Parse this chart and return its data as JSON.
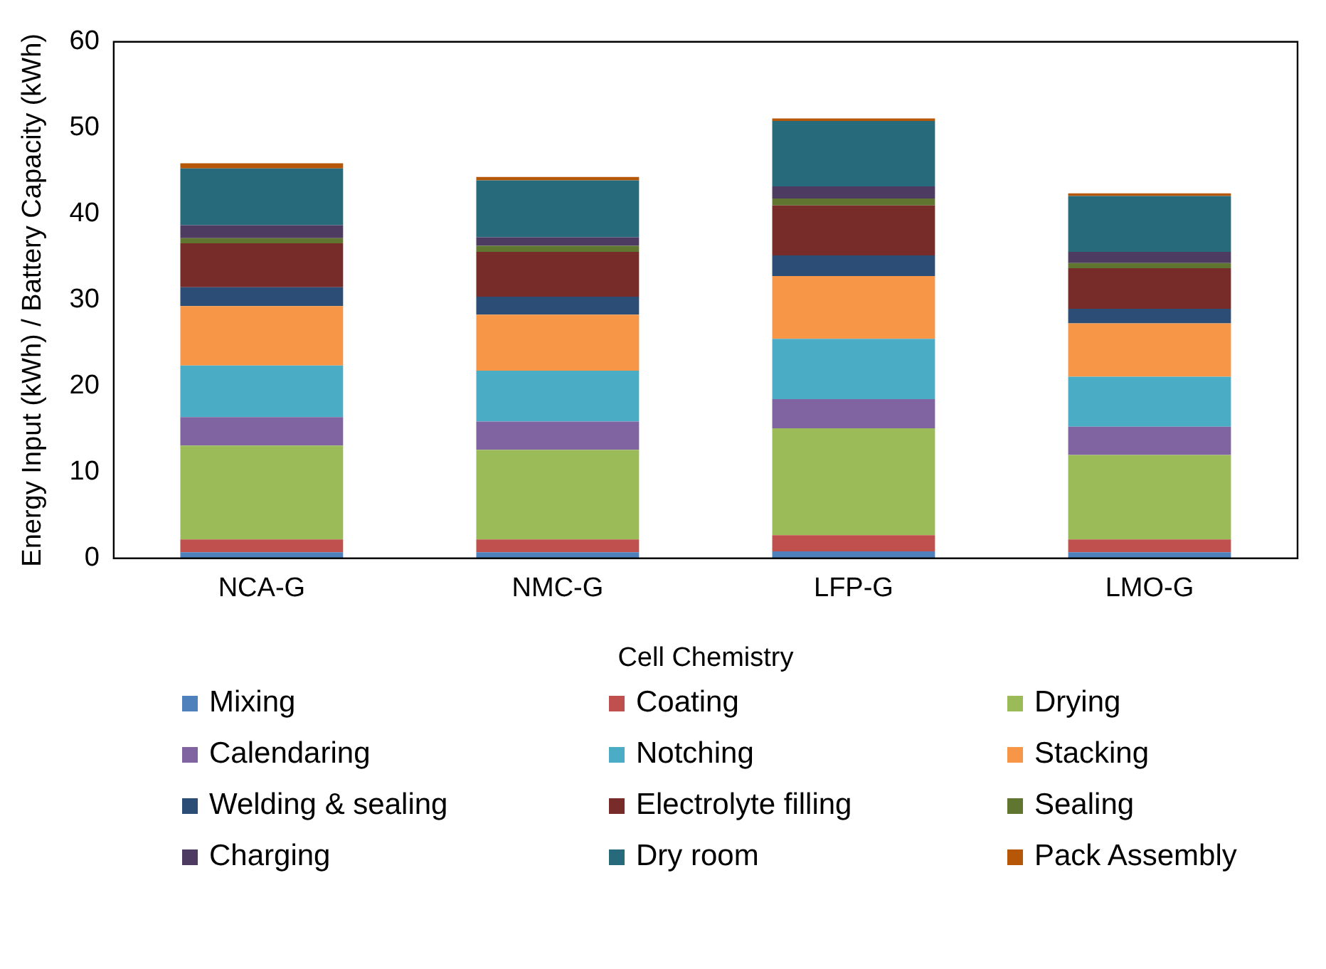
{
  "chart_data": {
    "type": "bar",
    "stacked": true,
    "xlabel": "Cell Chemistry",
    "ylabel": "Energy Input (kWh) / Battery Capacity (kWh)",
    "categories": [
      "NCA-G",
      "NMC-G",
      "LFP-G",
      "LMO-G"
    ],
    "ylim": [
      0,
      60
    ],
    "yticks": [
      0,
      10,
      20,
      30,
      40,
      50,
      60
    ],
    "grid": false,
    "legend": "bottom",
    "series": [
      {
        "name": "Mixing",
        "color": "#4f81bd",
        "values": [
          0.7,
          0.7,
          0.8,
          0.7
        ]
      },
      {
        "name": "Coating",
        "color": "#c0504d",
        "values": [
          1.5,
          1.5,
          1.9,
          1.5
        ]
      },
      {
        "name": "Drying",
        "color": "#9bbb59",
        "values": [
          10.9,
          10.4,
          12.4,
          9.8
        ]
      },
      {
        "name": "Calendaring",
        "color": "#8064a2",
        "values": [
          3.3,
          3.3,
          3.4,
          3.3
        ]
      },
      {
        "name": "Notching",
        "color": "#4bacc6",
        "values": [
          6.0,
          5.9,
          7.0,
          5.8
        ]
      },
      {
        "name": "Stacking",
        "color": "#f79646",
        "values": [
          6.9,
          6.5,
          7.3,
          6.2
        ]
      },
      {
        "name": "Welding & sealing",
        "color": "#2c4d75",
        "values": [
          2.2,
          2.1,
          2.4,
          1.7
        ]
      },
      {
        "name": "Electrolyte filling",
        "color": "#772c2a",
        "values": [
          5.1,
          5.2,
          5.8,
          4.7
        ]
      },
      {
        "name": "Sealing",
        "color": "#5f7530",
        "values": [
          0.6,
          0.7,
          0.8,
          0.6
        ]
      },
      {
        "name": "Charging",
        "color": "#4d3b62",
        "values": [
          1.5,
          1.0,
          1.4,
          1.3
        ]
      },
      {
        "name": "Dry room",
        "color": "#276a7c",
        "values": [
          6.6,
          6.6,
          7.6,
          6.5
        ]
      },
      {
        "name": "Pack Assembly",
        "color": "#b65708",
        "values": [
          0.6,
          0.4,
          0.3,
          0.3
        ]
      }
    ]
  }
}
